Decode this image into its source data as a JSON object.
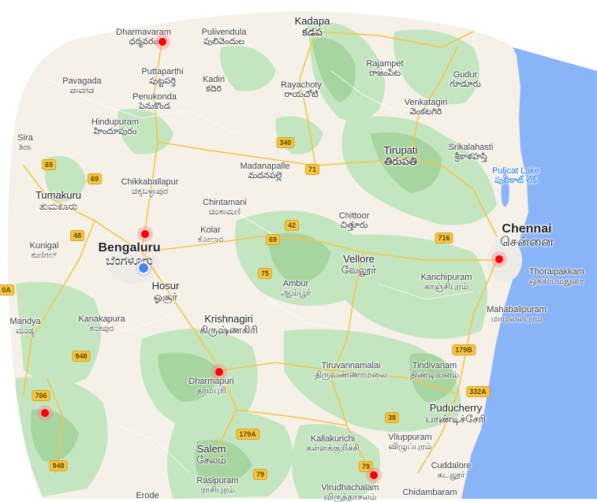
{
  "colors": {
    "land": "#f5f1e8",
    "park": "#c3e6c0",
    "park_dark": "#a6d5a0",
    "water": "#8ab4f8",
    "road": "#f6c445",
    "marker": "#ff0000",
    "location": "#4285f4"
  },
  "places": [
    {
      "en": "Kadapa",
      "loc": "కడప",
      "size": "mid"
    },
    {
      "en": "Dharmavaram",
      "loc": "ధర్మవరం",
      "size": "sm"
    },
    {
      "en": "Pulivendula",
      "loc": "పులివెందుల",
      "size": "sm"
    },
    {
      "en": "Rajampet",
      "loc": "రాజంపేట",
      "size": "sm"
    },
    {
      "en": "Puttaparthi",
      "loc": "పుట్టపర్తి",
      "size": "sm"
    },
    {
      "en": "Pavagada",
      "loc": "ಪಾವಗಡ",
      "size": "sm"
    },
    {
      "en": "Kadiri",
      "loc": "కదిరి",
      "size": "sm"
    },
    {
      "en": "Rayachoty",
      "loc": "రాయచోటి",
      "size": "sm"
    },
    {
      "en": "Gudur",
      "loc": "గూడూరు",
      "size": "sm"
    },
    {
      "en": "Penukonda",
      "loc": "పెనుకొండ",
      "size": "sm"
    },
    {
      "en": "Venkatagiri",
      "loc": "వెంకటగిరి",
      "size": "sm"
    },
    {
      "en": "Hindupuram",
      "loc": "హిందూపురం",
      "size": "sm"
    },
    {
      "en": "Sira",
      "loc": "ಶಿರಾ",
      "size": "sm"
    },
    {
      "en": "Tirupati",
      "loc": "తిరుపతి",
      "size": "mid"
    },
    {
      "en": "Srikalahasti",
      "loc": "శ్రీకాళహస్తి",
      "size": "sm"
    },
    {
      "en": "Madanapalle",
      "loc": "మదనపల్లె",
      "size": "sm"
    },
    {
      "en": "Chikkaballapur",
      "loc": "ಚಿಕ್ಕಬಳ್ಳಾಪುರ",
      "size": "sm"
    },
    {
      "en": "Tumakuru",
      "loc": "ತುಮಕೂರು",
      "size": "mid"
    },
    {
      "en": "Chintamani",
      "loc": "ಚಿಂತಾಮಣಿ",
      "size": "sm"
    },
    {
      "en": "Chittoor",
      "loc": "చిత్తూరు",
      "size": "sm"
    },
    {
      "en": "Chennai",
      "loc": "சென்னை",
      "size": "big"
    },
    {
      "en": "Kunigal",
      "loc": "ಕುಣಿಗಲ್",
      "size": "sm"
    },
    {
      "en": "Kolar",
      "loc": "ಕೋಲಾರ",
      "size": "sm"
    },
    {
      "en": "Bengaluru",
      "loc": "ಬೆಂಗಳೂರು",
      "size": "big"
    },
    {
      "en": "Vellore",
      "loc": "வேலூர்",
      "size": "mid"
    },
    {
      "en": "Thoraipakkam",
      "loc": "ஒக்கியம்துரை",
      "size": "sm"
    },
    {
      "en": "Kanchipuram",
      "loc": "காஞ்சிபுரம்",
      "size": "sm"
    },
    {
      "en": "Hosur",
      "loc": "ஓசூர்",
      "size": "mid"
    },
    {
      "en": "Ambur",
      "loc": "ஆம்பூர்",
      "size": "sm"
    },
    {
      "en": "Mahabalipuram",
      "loc": "மாமல்லபுரம்",
      "size": "sm"
    },
    {
      "en": "Mandya",
      "loc": "ಮಂಡ್ಯ",
      "size": "sm"
    },
    {
      "en": "Kanakapura",
      "loc": "ಕನಕಪುರ",
      "size": "sm"
    },
    {
      "en": "Krishnagiri",
      "loc": "கிருஷ்ணகிரி",
      "size": "mid"
    },
    {
      "en": "Tiruvannamalai",
      "loc": "திருவண்ணாமலை",
      "size": "sm"
    },
    {
      "en": "Tindivanam",
      "loc": "திண்டிவனம்",
      "size": "sm"
    },
    {
      "en": "Dharmapuri",
      "loc": "தர்மபுரி",
      "size": "sm"
    },
    {
      "en": "Puducherry",
      "loc": "பாண்டிச்சேரி",
      "size": "mid"
    },
    {
      "en": "Kallakurichi",
      "loc": "கள்ளக்குறிச்சி",
      "size": "sm"
    },
    {
      "en": "Viluppuram",
      "loc": "விழுப்புரம்",
      "size": "sm"
    },
    {
      "en": "Salem",
      "loc": "சேலம்",
      "size": "mid"
    },
    {
      "en": "Cuddalore",
      "loc": "கடலூர்",
      "size": "sm"
    },
    {
      "en": "Rasipuram",
      "loc": "ராசிபுரம்",
      "size": "sm"
    },
    {
      "en": "Virudhachalam",
      "loc": "விருத்தாசலம்",
      "size": "sm"
    },
    {
      "en": "Chidambaram",
      "loc": "",
      "size": "sm"
    },
    {
      "en": "Erode",
      "loc": "",
      "size": "sm"
    }
  ],
  "water_labels": [
    {
      "en": "Pulicat Lake",
      "loc": "పులికాట్ లేక్"
    }
  ],
  "shields": [
    "340",
    "71",
    "69",
    "69",
    "48",
    "42",
    "69",
    "716",
    "75",
    "0A",
    "948",
    "179B",
    "766",
    "332A",
    "38",
    "179A",
    "948",
    "79",
    "79"
  ],
  "markers": 8
}
